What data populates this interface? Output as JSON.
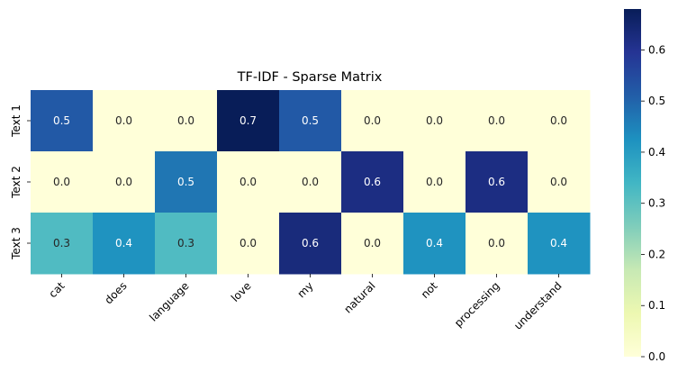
{
  "chart_data": {
    "type": "heatmap",
    "title": "TF-IDF - Sparse Matrix",
    "xlabel": "",
    "ylabel": "",
    "columns": [
      "cat",
      "does",
      "language",
      "love",
      "my",
      "natural",
      "not",
      "processing",
      "understand"
    ],
    "rows": [
      "Text 1",
      "Text 2",
      "Text 3"
    ],
    "values": [
      [
        0.52,
        0.0,
        0.0,
        0.68,
        0.52,
        0.0,
        0.0,
        0.0,
        0.0
      ],
      [
        0.0,
        0.0,
        0.47,
        0.0,
        0.0,
        0.62,
        0.0,
        0.62,
        0.0
      ],
      [
        0.32,
        0.42,
        0.32,
        0.0,
        0.63,
        0.0,
        0.42,
        0.0,
        0.42
      ]
    ],
    "value_format": "0.1f",
    "colormap": "YlGnBu",
    "colorbar": {
      "range": [
        0.0,
        0.68
      ],
      "ticks": [
        0.0,
        0.1,
        0.2,
        0.3,
        0.4,
        0.5,
        0.6
      ],
      "tick_labels": [
        "0.0",
        "0.1",
        "0.2",
        "0.3",
        "0.4",
        "0.5",
        "0.6"
      ]
    },
    "grid": false,
    "legend": "colorbar-right"
  }
}
